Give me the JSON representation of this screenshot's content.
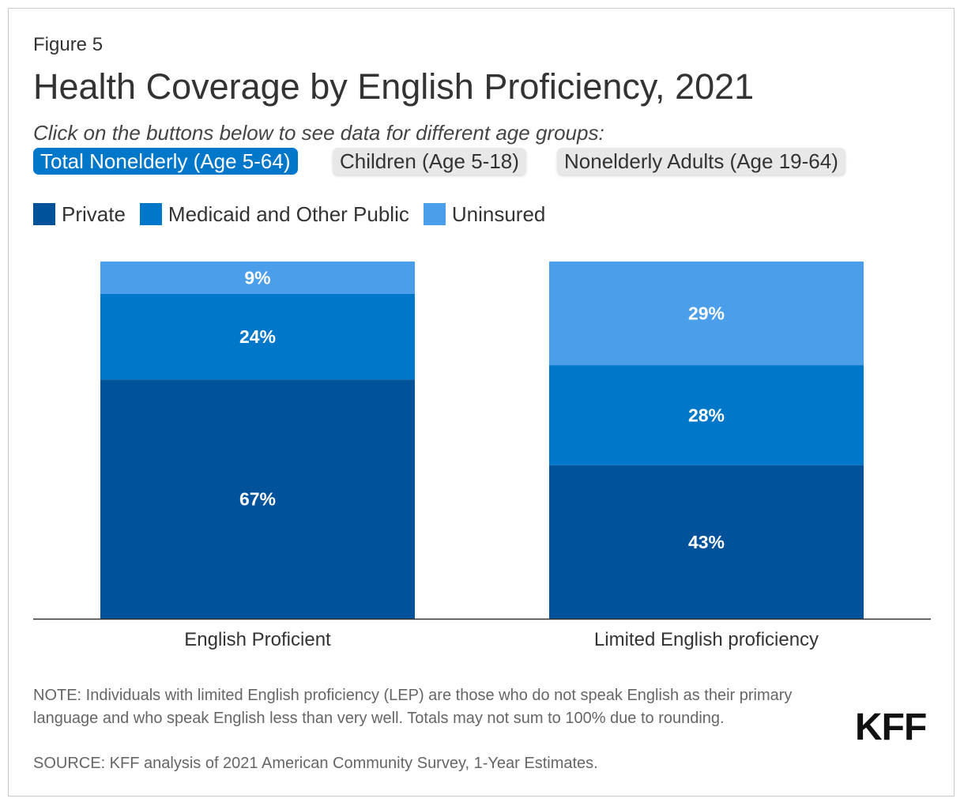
{
  "figure_label": "Figure 5",
  "title": "Health Coverage by English Proficiency, 2021",
  "subtitle": "Click on the buttons below to see data for different age groups:",
  "buttons": [
    {
      "label": "Total Nonelderly (Age 5-64)",
      "active": true
    },
    {
      "label": "Children (Age 5-18)",
      "active": false
    },
    {
      "label": "Nonelderly Adults (Age 19-64)",
      "active": false
    }
  ],
  "colors": {
    "private": "#00539b",
    "medicaid": "#0077c8",
    "uninsured": "#4a9eea",
    "active_button": "#0077c8",
    "inactive_button": "#e8e8e8"
  },
  "chart_data": {
    "type": "bar",
    "stacked": true,
    "categories": [
      "English Proficient",
      "Limited English proficiency"
    ],
    "series": [
      {
        "name": "Private",
        "values": [
          67,
          43
        ]
      },
      {
        "name": "Medicaid and Other Public",
        "values": [
          24,
          28
        ]
      },
      {
        "name": "Uninsured",
        "values": [
          9,
          29
        ]
      }
    ],
    "unit": "%",
    "ylim": [
      0,
      100
    ],
    "legend_position": "top-left",
    "grid": false
  },
  "note": "NOTE: Individuals with limited English proficiency (LEP) are those who do not speak English as their primary language and who speak English less than very well. Totals may not sum to 100% due to rounding.",
  "source": "SOURCE: KFF analysis of 2021 American Community Survey, 1-Year Estimates.",
  "logo_text": "KFF"
}
